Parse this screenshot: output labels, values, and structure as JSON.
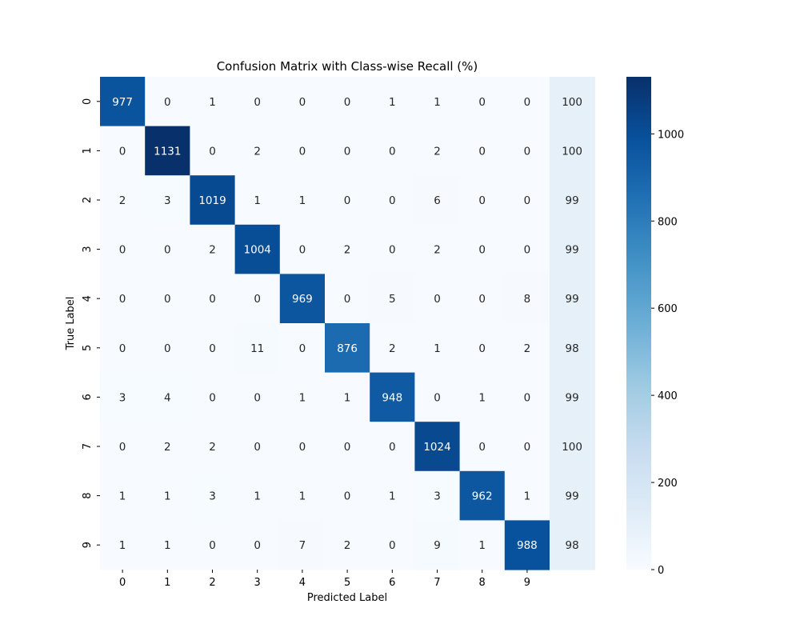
{
  "chart_data": {
    "type": "heatmap",
    "title": "Confusion Matrix with Class-wise Recall (%)",
    "xlabel": "Predicted Label",
    "ylabel": "True Label",
    "x_tick_labels": [
      "0",
      "1",
      "2",
      "3",
      "4",
      "5",
      "6",
      "7",
      "8",
      "9"
    ],
    "y_tick_labels": [
      "0",
      "1",
      "2",
      "3",
      "4",
      "5",
      "6",
      "7",
      "8",
      "9"
    ],
    "matrix": [
      [
        977,
        0,
        1,
        0,
        0,
        0,
        1,
        1,
        0,
        0
      ],
      [
        0,
        1131,
        0,
        2,
        0,
        0,
        0,
        2,
        0,
        0
      ],
      [
        2,
        3,
        1019,
        1,
        1,
        0,
        0,
        6,
        0,
        0
      ],
      [
        0,
        0,
        2,
        1004,
        0,
        2,
        0,
        2,
        0,
        0
      ],
      [
        0,
        0,
        0,
        0,
        969,
        0,
        5,
        0,
        0,
        8
      ],
      [
        0,
        0,
        0,
        11,
        0,
        876,
        2,
        1,
        0,
        2
      ],
      [
        3,
        4,
        0,
        0,
        1,
        1,
        948,
        0,
        1,
        0
      ],
      [
        0,
        2,
        2,
        0,
        0,
        0,
        0,
        1024,
        0,
        0
      ],
      [
        1,
        1,
        3,
        1,
        1,
        0,
        1,
        3,
        962,
        1
      ],
      [
        1,
        1,
        0,
        0,
        7,
        2,
        0,
        9,
        1,
        988
      ]
    ],
    "recall": [
      100,
      100,
      99,
      99,
      99,
      98,
      99,
      100,
      99,
      98
    ],
    "colorbar": {
      "min": 0,
      "max": 1131,
      "ticks": [
        0,
        200,
        400,
        600,
        800,
        1000
      ]
    },
    "colormap": "Blues",
    "grid": false
  }
}
